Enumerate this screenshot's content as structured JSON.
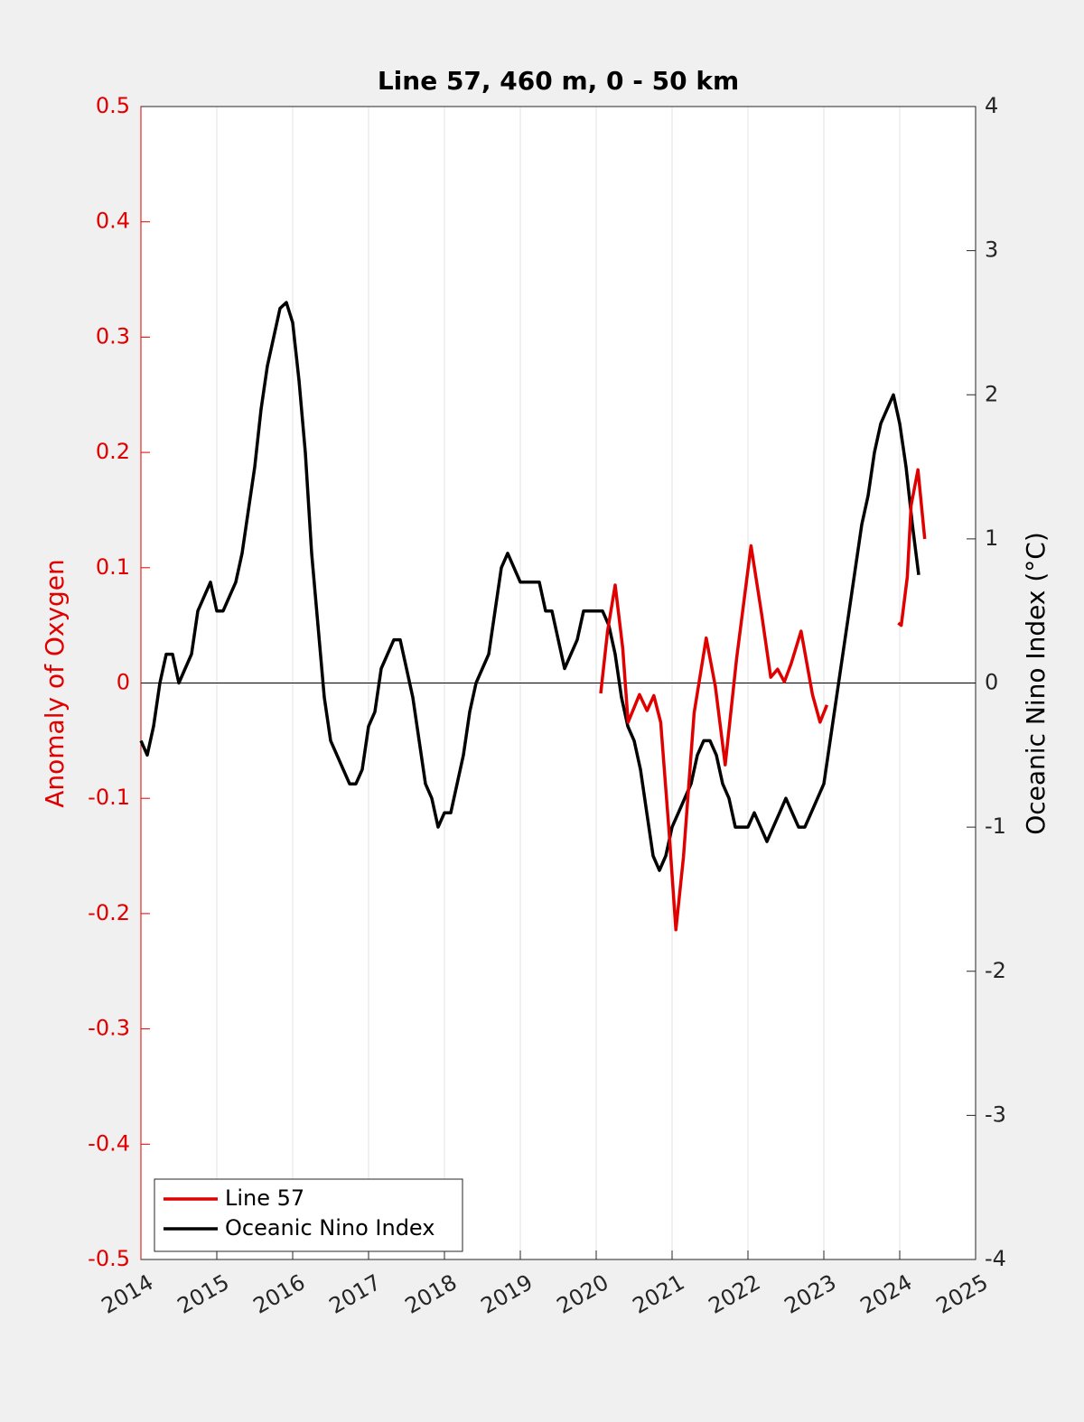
{
  "chart_data": {
    "type": "line",
    "title": "Line 57, 460 m, 0 - 50 km",
    "ylabel": "Anomaly of Oxygen",
    "y2label": "Oceanic Nino Index (°C)",
    "xlim": [
      2014,
      2025
    ],
    "xticks": [
      2014,
      2015,
      2016,
      2017,
      2018,
      2019,
      2020,
      2021,
      2022,
      2023,
      2024,
      2025
    ],
    "ylim": [
      -0.5,
      0.5
    ],
    "yticks": [
      -0.5,
      -0.4,
      -0.3,
      -0.2,
      -0.1,
      0,
      0.1,
      0.2,
      0.3,
      0.4,
      0.5
    ],
    "y2lim": [
      -4,
      4
    ],
    "y2ticks": [
      -4,
      -3,
      -2,
      -1,
      0,
      1,
      2,
      3,
      4
    ],
    "ycolor": "#e00000",
    "hline": 0,
    "grid": true,
    "legend": "lower left",
    "series": [
      {
        "name": "Line 57",
        "color": "#e00000",
        "x": [
          2020.06,
          2020.15,
          2020.25,
          2020.35,
          2020.42,
          2020.57,
          2020.67,
          2020.76,
          2020.85,
          2020.96,
          2021.05,
          2021.15,
          2021.29,
          2021.45,
          2021.57,
          2021.7,
          2021.85,
          2022.04,
          2022.18,
          2022.3,
          2022.39,
          2022.48,
          2022.57,
          2022.7,
          2022.85,
          2022.95,
          2023.04,
          2023.5,
          2023.98,
          2024.02,
          2024.1,
          2024.15,
          2024.24,
          2024.33
        ],
        "values": [
          -0.009,
          0.045,
          0.085,
          0.03,
          -0.034,
          -0.01,
          -0.024,
          -0.011,
          -0.034,
          -0.128,
          -0.214,
          -0.151,
          -0.026,
          0.039,
          -0.003,
          -0.071,
          0.021,
          0.119,
          0.06,
          0.005,
          0.012,
          0.001,
          0.017,
          0.045,
          -0.01,
          -0.034,
          -0.019,
          null,
          0.052,
          0.05,
          0.092,
          0.154,
          0.185,
          0.125
        ]
      },
      {
        "name": "Oceanic Nino Index",
        "color": "#000000",
        "axis": "y2",
        "x": [
          2014.0,
          2014.083,
          2014.167,
          2014.25,
          2014.333,
          2014.417,
          2014.5,
          2014.583,
          2014.667,
          2014.75,
          2014.833,
          2014.917,
          2015.0,
          2015.083,
          2015.167,
          2015.25,
          2015.333,
          2015.417,
          2015.5,
          2015.583,
          2015.667,
          2015.75,
          2015.833,
          2015.917,
          2016.0,
          2016.083,
          2016.167,
          2016.25,
          2016.333,
          2016.417,
          2016.5,
          2016.583,
          2016.667,
          2016.75,
          2016.833,
          2016.917,
          2017.0,
          2017.083,
          2017.167,
          2017.25,
          2017.333,
          2017.417,
          2017.5,
          2017.583,
          2017.667,
          2017.75,
          2017.833,
          2017.917,
          2018.0,
          2018.083,
          2018.167,
          2018.25,
          2018.333,
          2018.417,
          2018.5,
          2018.583,
          2018.667,
          2018.75,
          2018.833,
          2018.917,
          2019.0,
          2019.083,
          2019.167,
          2019.25,
          2019.333,
          2019.417,
          2019.5,
          2019.583,
          2019.667,
          2019.75,
          2019.833,
          2019.917,
          2020.0,
          2020.083,
          2020.167,
          2020.25,
          2020.333,
          2020.417,
          2020.5,
          2020.583,
          2020.667,
          2020.75,
          2020.833,
          2020.917,
          2021.0,
          2021.083,
          2021.167,
          2021.25,
          2021.333,
          2021.417,
          2021.5,
          2021.583,
          2021.667,
          2021.75,
          2021.833,
          2021.917,
          2022.0,
          2022.083,
          2022.167,
          2022.25,
          2022.333,
          2022.417,
          2022.5,
          2022.583,
          2022.667,
          2022.75,
          2022.833,
          2022.917,
          2023.0,
          2023.083,
          2023.167,
          2023.25,
          2023.333,
          2023.417,
          2023.5,
          2023.583,
          2023.667,
          2023.75,
          2023.833,
          2023.917,
          2024.0,
          2024.083,
          2024.167,
          2024.25
        ],
        "values": [
          -0.4,
          -0.5,
          -0.3,
          0.0,
          0.2,
          0.2,
          0.0,
          0.1,
          0.2,
          0.5,
          0.6,
          0.7,
          0.5,
          0.5,
          0.6,
          0.7,
          0.9,
          1.2,
          1.5,
          1.9,
          2.2,
          2.4,
          2.6,
          2.64,
          2.5,
          2.1,
          1.6,
          0.9,
          0.4,
          -0.1,
          -0.4,
          -0.5,
          -0.6,
          -0.7,
          -0.7,
          -0.6,
          -0.3,
          -0.2,
          0.1,
          0.2,
          0.3,
          0.3,
          0.1,
          -0.1,
          -0.4,
          -0.7,
          -0.8,
          -1.0,
          -0.9,
          -0.9,
          -0.7,
          -0.5,
          -0.2,
          0.0,
          0.1,
          0.2,
          0.5,
          0.8,
          0.9,
          0.8,
          0.7,
          0.7,
          0.7,
          0.7,
          0.5,
          0.5,
          0.3,
          0.1,
          0.2,
          0.3,
          0.5,
          0.5,
          0.5,
          0.5,
          0.4,
          0.2,
          -0.1,
          -0.3,
          -0.4,
          -0.6,
          -0.9,
          -1.2,
          -1.3,
          -1.2,
          -1.0,
          -0.9,
          -0.8,
          -0.7,
          -0.5,
          -0.4,
          -0.4,
          -0.5,
          -0.7,
          -0.8,
          -1.0,
          -1.0,
          -1.0,
          -0.9,
          -1.0,
          -1.1,
          -1.0,
          -0.9,
          -0.8,
          -0.9,
          -1.0,
          -1.0,
          -0.9,
          -0.8,
          -0.7,
          -0.4,
          -0.1,
          0.2,
          0.5,
          0.8,
          1.1,
          1.3,
          1.6,
          1.8,
          1.9,
          2.0,
          1.8,
          1.5,
          1.1,
          0.75
        ]
      }
    ]
  }
}
